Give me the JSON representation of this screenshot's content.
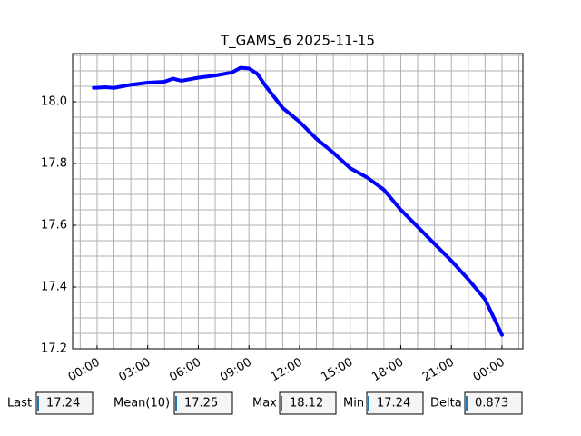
{
  "chart_data": {
    "type": "line",
    "title": "T_GAMS_6 2025-11-15",
    "x": [
      -0.2,
      0.5,
      1,
      2,
      3,
      4,
      4.5,
      5,
      6,
      7,
      8,
      8.5,
      9,
      9.5,
      10,
      11,
      12,
      13,
      14,
      15,
      16,
      17,
      18,
      19,
      20,
      21,
      22,
      23,
      24
    ],
    "series": [
      {
        "color": "#0000ff",
        "values": [
          18.045,
          18.047,
          18.045,
          18.055,
          18.062,
          18.065,
          18.075,
          18.068,
          18.078,
          18.085,
          18.095,
          18.11,
          18.108,
          18.09,
          18.05,
          17.98,
          17.935,
          17.88,
          17.835,
          17.785,
          17.755,
          17.715,
          17.65,
          17.595,
          17.54,
          17.485,
          17.425,
          17.36,
          17.245
        ]
      }
    ],
    "xlim": [
      -1.45,
      25.24
    ],
    "ylim": [
      17.2,
      18.156
    ],
    "xticks": [
      {
        "value": 0,
        "label": "00:00"
      },
      {
        "value": 3,
        "label": "03:00"
      },
      {
        "value": 6,
        "label": "06:00"
      },
      {
        "value": 9,
        "label": "09:00"
      },
      {
        "value": 12,
        "label": "12:00"
      },
      {
        "value": 15,
        "label": "15:00"
      },
      {
        "value": 18,
        "label": "18:00"
      },
      {
        "value": 21,
        "label": "21:00"
      },
      {
        "value": 24,
        "label": "00:00"
      }
    ],
    "yticks": [
      {
        "value": 17.2,
        "label": "17.2"
      },
      {
        "value": 17.4,
        "label": "17.4"
      },
      {
        "value": 17.6,
        "label": "17.6"
      },
      {
        "value": 17.8,
        "label": "17.8"
      },
      {
        "value": 18.0,
        "label": "18.0"
      }
    ],
    "xminorticks": [
      -1,
      1,
      2,
      4,
      5,
      7,
      8,
      10,
      11,
      13,
      14,
      16,
      17,
      19,
      20,
      22,
      23,
      25
    ],
    "yminorticks": [
      17.25,
      17.3,
      17.35,
      17.45,
      17.5,
      17.55,
      17.65,
      17.7,
      17.75,
      17.85,
      17.9,
      17.95,
      18.05,
      18.1,
      18.15
    ],
    "grid": true
  },
  "stats": [
    {
      "label": "Last",
      "value": 17.24
    },
    {
      "label": "Mean(10)",
      "value": 17.25
    },
    {
      "label": "Max",
      "value": 18.12
    },
    {
      "label": "Min",
      "value": 17.24
    },
    {
      "label": "Delta",
      "value": 0.873
    }
  ]
}
